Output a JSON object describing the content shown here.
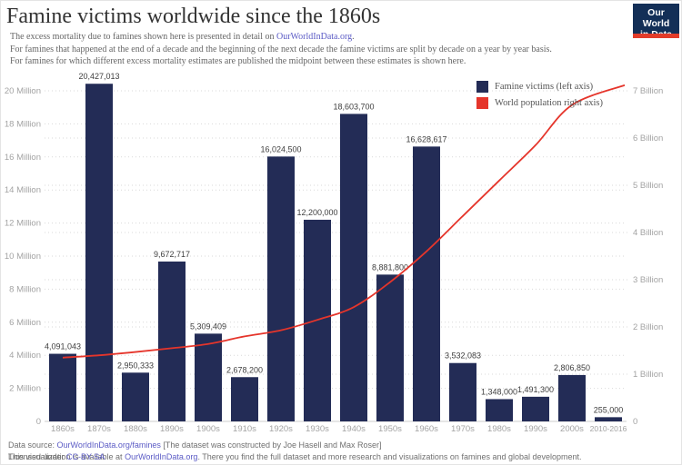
{
  "header": {
    "title": "Famine victims worldwide since the 1860s",
    "logo": {
      "line1": "Our World",
      "line2": "in Data"
    }
  },
  "subtitle": {
    "line1_prefix": "The excess mortality due to famines shown here is presented in detail on ",
    "line1_link": "OurWorldInData.org",
    "line1_suffix": ".",
    "line2": "For famines that happened at the end of a decade and the beginning of the next decade the famine victims are split by decade on a year by year basis.",
    "line3": "For famines for which different excess mortality estimates are published the midpoint between these estimates is shown here."
  },
  "legend": {
    "items": [
      {
        "label": "Famine victims (left axis)",
        "color": "#232c56"
      },
      {
        "label": "World population right axis)",
        "color": "#e5352b"
      }
    ]
  },
  "chart_data": {
    "type": "bar",
    "title": "Famine victims worldwide since the 1860s",
    "categories": [
      "1860s",
      "1870s",
      "1880s",
      "1890s",
      "1900s",
      "1910s",
      "1920s",
      "1930s",
      "1940s",
      "1950s",
      "1960s",
      "1970s",
      "1980s",
      "1990s",
      "2000s",
      "2010-2016"
    ],
    "series": [
      {
        "name": "Famine victims (left axis)",
        "type": "bar",
        "axis": "left",
        "color": "#232c56",
        "values": [
          4091043,
          20427013,
          2950333,
          9672717,
          5309409,
          2678200,
          16024500,
          12200000,
          18603700,
          8881800,
          16628617,
          3532083,
          1348000,
          1491300,
          2806850,
          255000
        ],
        "value_labels": [
          "4,091,043",
          "20,427,013",
          "2,950,333",
          "9,672,717",
          "5,309,409",
          "2,678,200",
          "16,024,500",
          "12,200,000",
          "18,603,700",
          "8,881,800",
          "16,628,617",
          "3,532,083",
          "1,348,000",
          "1,491,300",
          "2,806,850",
          "255,000"
        ]
      },
      {
        "name": "World population right axis)",
        "type": "line",
        "axis": "right",
        "color": "#e5352b",
        "values_billions": [
          1.35,
          1.4,
          1.47,
          1.55,
          1.64,
          1.8,
          1.93,
          2.15,
          2.42,
          2.95,
          3.6,
          4.35,
          5.1,
          5.85,
          6.7,
          7.12
        ]
      }
    ],
    "left_axis": {
      "unit": "famine victims",
      "range_millions": [
        0,
        20
      ],
      "ticks": [
        {
          "label": "20 Million",
          "value_millions": 20
        },
        {
          "label": "18 Million",
          "value_millions": 18
        },
        {
          "label": "16 Million",
          "value_millions": 16
        },
        {
          "label": "14 Million",
          "value_millions": 14
        },
        {
          "label": "12 Million",
          "value_millions": 12
        },
        {
          "label": "10 Million",
          "value_millions": 10
        },
        {
          "label": "8 Million",
          "value_millions": 8
        },
        {
          "label": "6 Million",
          "value_millions": 6
        },
        {
          "label": "4 Million",
          "value_millions": 4
        },
        {
          "label": "2 Million",
          "value_millions": 2
        },
        {
          "label": "0",
          "value_millions": 0
        }
      ]
    },
    "right_axis": {
      "unit": "world population",
      "range_billions": [
        0,
        7
      ],
      "ticks": [
        {
          "label": "7 Billion",
          "value_billions": 7
        },
        {
          "label": "6 Billion",
          "value_billions": 6
        },
        {
          "label": "5 Billion",
          "value_billions": 5
        },
        {
          "label": "4 Billion",
          "value_billions": 4
        },
        {
          "label": "3 Billion",
          "value_billions": 3
        },
        {
          "label": "2 Billion",
          "value_billions": 2
        },
        {
          "label": "1 Billion",
          "value_billions": 1
        },
        {
          "label": "0",
          "value_billions": 0
        }
      ]
    },
    "grid": "horizontal dotted lines for both axes",
    "legend_position": "top-right inside plot"
  },
  "colors": {
    "bar": "#232c56",
    "line": "#e5352b",
    "link": "#5b5bc5",
    "axis_text": "#a3a3a3",
    "value_label": "#404040",
    "grid": "#d9d9d9",
    "baseline": "#cccccc",
    "logo_bg": "#132f57",
    "logo_strip": "#e23c2a"
  },
  "footer": {
    "line1": {
      "prefix": "Data source: ",
      "link": "OurWorldInData.org/famines",
      "suffix": " [The dataset was constructed by Joe Hasell and Max Roser]"
    },
    "line2": {
      "prefix": "This visualization is available at ",
      "link": "OurWorldInData.org",
      "suffix": ". There you find the full dataset and more research and visualizations on famines and global development."
    },
    "license": {
      "prefix": "Licensed under ",
      "link": "CC-BY-SA"
    }
  }
}
